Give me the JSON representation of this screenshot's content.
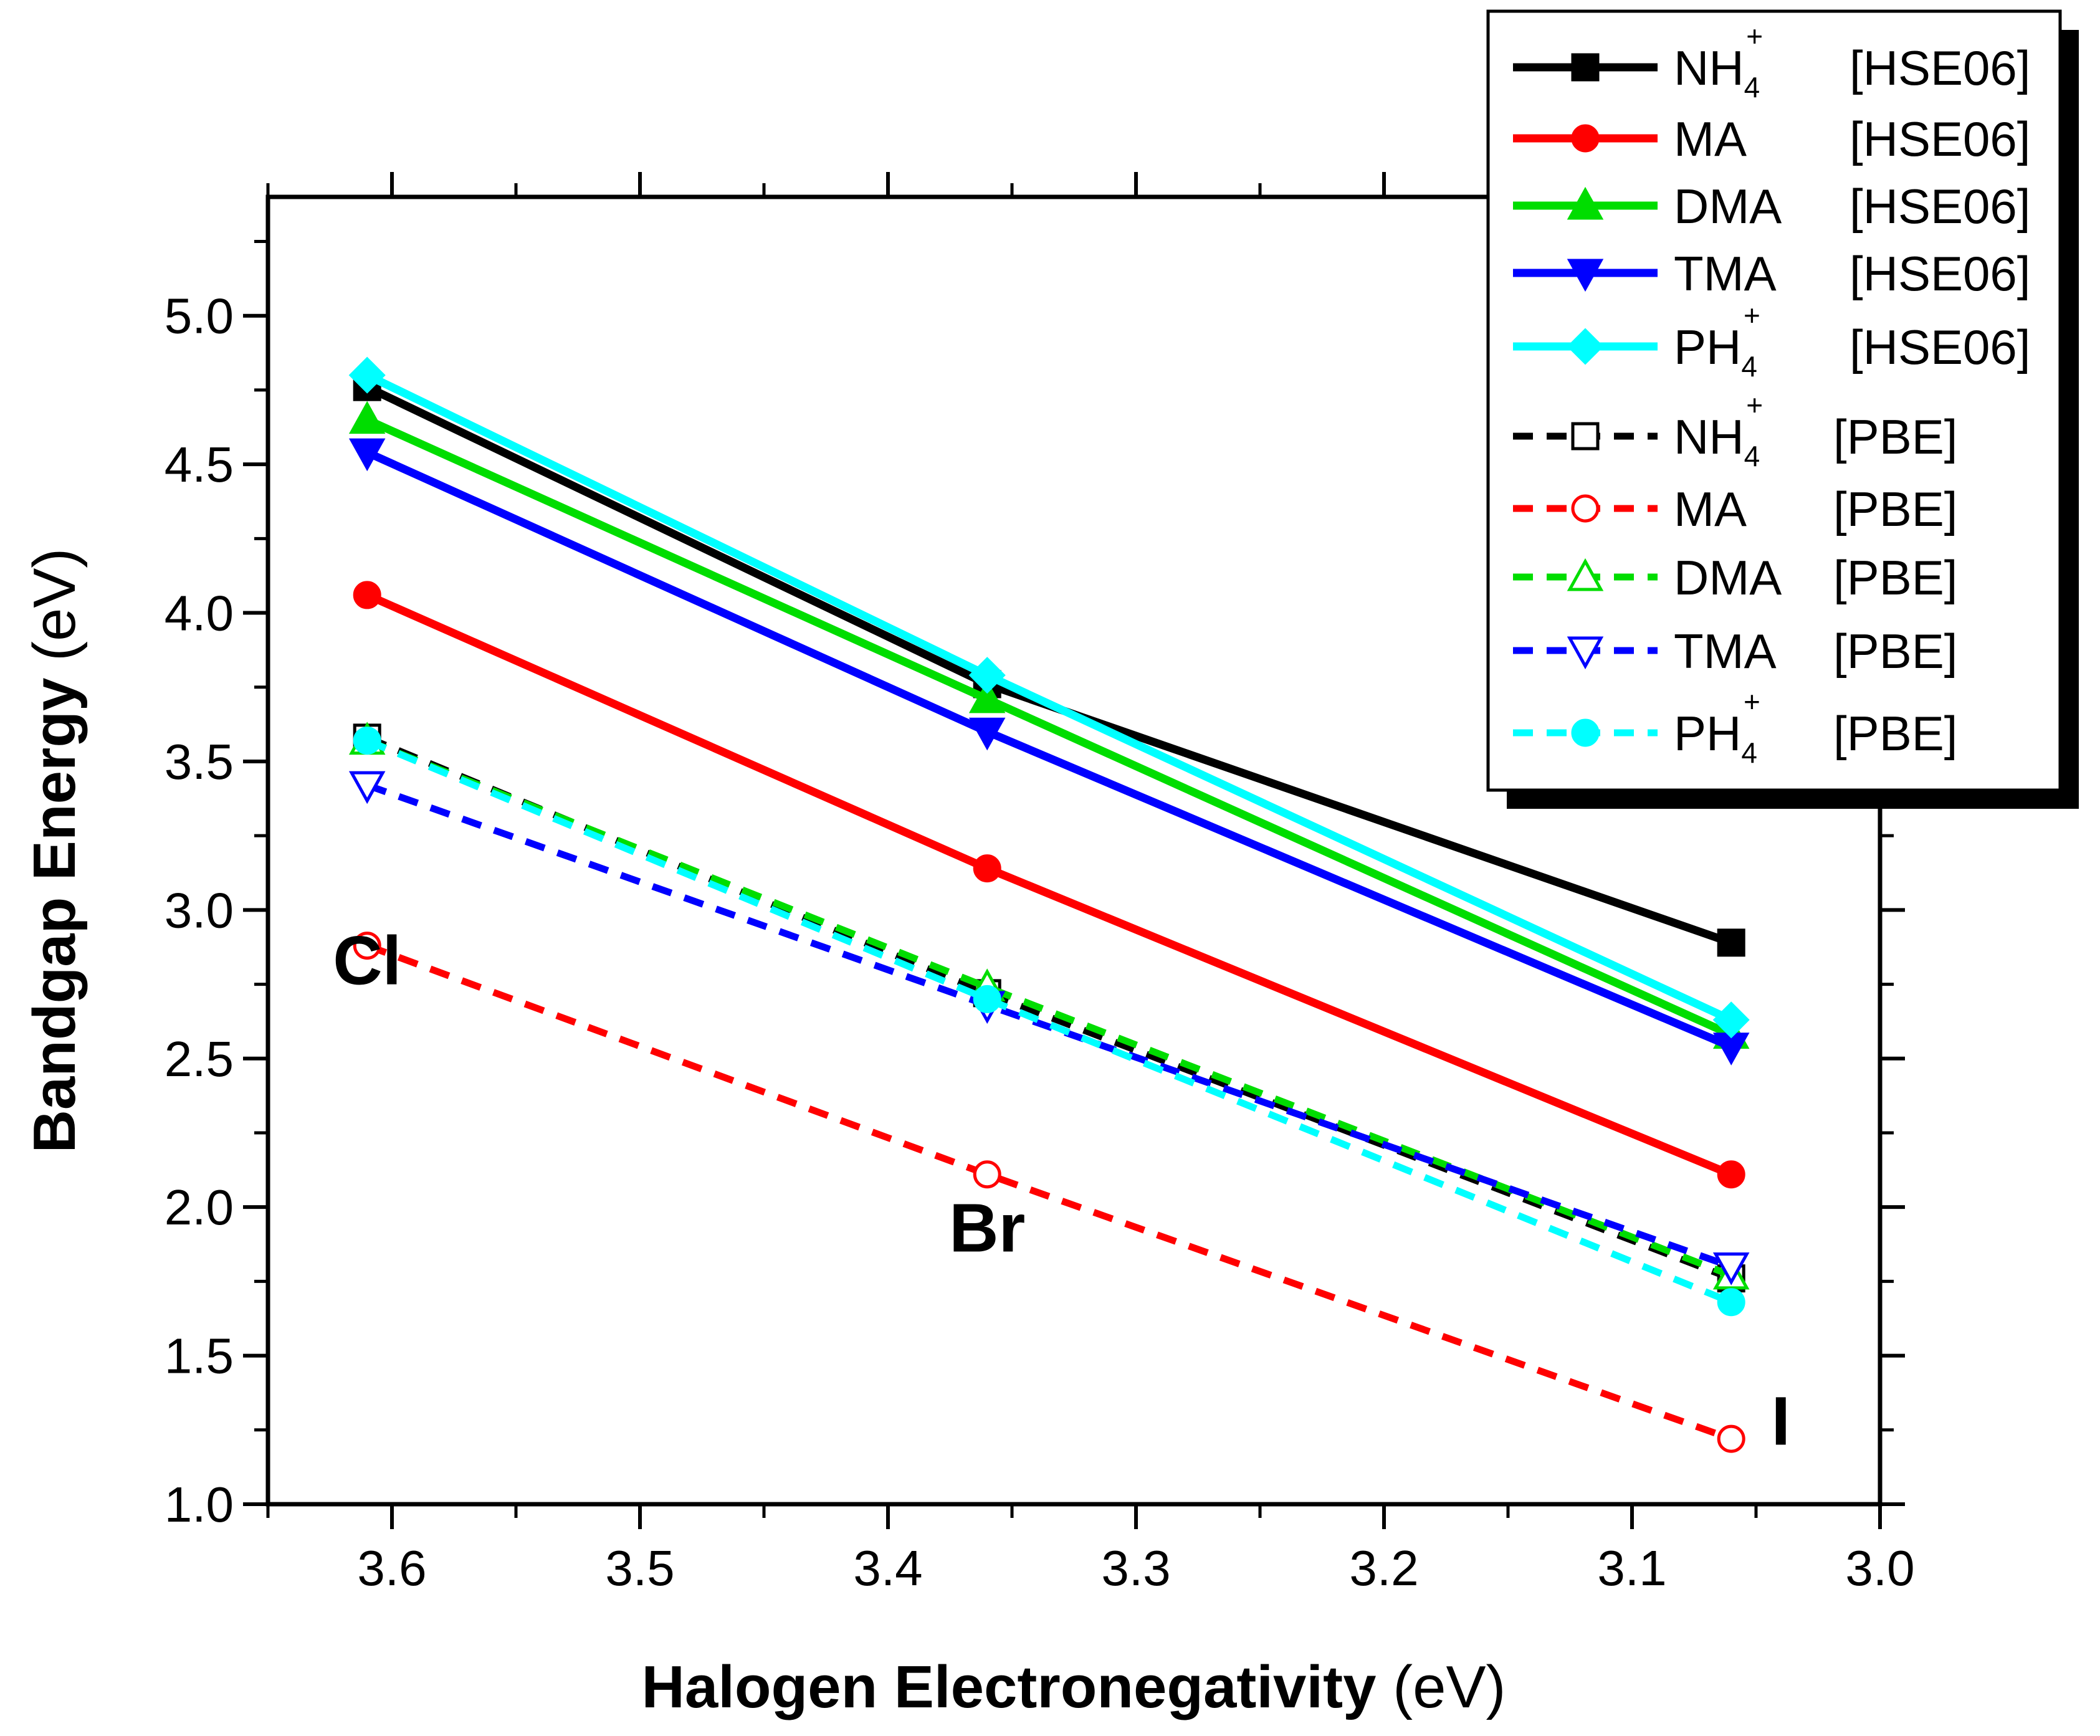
{
  "chart_data": {
    "type": "line",
    "xlabel_bold": "Halogen Electronegativity",
    "xlabel_unit": " (eV)",
    "ylabel_bold": "Bandgap Energy",
    "ylabel_unit": " (eV)",
    "xlim": [
      3.65,
      3.0
    ],
    "ylim": [
      1.0,
      5.4
    ],
    "x_ticks": [
      3.6,
      3.5,
      3.4,
      3.3,
      3.2,
      3.1,
      3.0
    ],
    "x_tick_labels": [
      "3.6",
      "3.5",
      "3.4",
      "3.3",
      "3.2",
      "3.1",
      "3.0"
    ],
    "y_ticks": [
      1.0,
      1.5,
      2.0,
      2.5,
      3.0,
      3.5,
      4.0,
      4.5,
      5.0
    ],
    "y_tick_labels": [
      "1.0",
      "1.5",
      "2.0",
      "2.5",
      "3.0",
      "3.5",
      "4.0",
      "4.5",
      "5.0"
    ],
    "x": [
      3.61,
      3.36,
      3.06
    ],
    "annotations": [
      {
        "text": "Cl",
        "x": 3.61,
        "y": 2.75
      },
      {
        "text": "Br",
        "x": 3.36,
        "y": 1.85
      },
      {
        "text": "I",
        "x": 3.04,
        "y": 1.2
      }
    ],
    "legend_position": "top-right",
    "series": [
      {
        "name": "NH4+",
        "label_main": "NH",
        "label_sub": "4",
        "label_sup": "+",
        "method": "[HSE06]",
        "values": [
          4.76,
          3.76,
          2.89
        ],
        "color": "#000000",
        "dash": "solid",
        "marker": "square",
        "filled": true
      },
      {
        "name": "MA",
        "label_main": "MA",
        "label_sub": "",
        "label_sup": "",
        "method": "[HSE06]",
        "values": [
          4.06,
          3.14,
          2.11
        ],
        "color": "#ff0000",
        "dash": "solid",
        "marker": "circle",
        "filled": true
      },
      {
        "name": "DMA",
        "label_main": "DMA",
        "label_sub": "",
        "label_sup": "",
        "method": "[HSE06]",
        "values": [
          4.65,
          3.71,
          2.58
        ],
        "color": "#00dd00",
        "dash": "solid",
        "marker": "triangle-up",
        "filled": true
      },
      {
        "name": "TMA",
        "label_main": "TMA",
        "label_sub": "",
        "label_sup": "",
        "method": "[HSE06]",
        "values": [
          4.54,
          3.6,
          2.54
        ],
        "color": "#0000ff",
        "dash": "solid",
        "marker": "triangle-down",
        "filled": true
      },
      {
        "name": "PH4+",
        "label_main": "PH",
        "label_sub": "4",
        "label_sup": "+",
        "method": "[HSE06]",
        "values": [
          4.8,
          3.79,
          2.63
        ],
        "color": "#00ffff",
        "dash": "solid",
        "marker": "diamond",
        "filled": true
      },
      {
        "name": "NH4+",
        "label_main": "NH",
        "label_sub": "4",
        "label_sup": "+",
        "method": "[PBE]",
        "values": [
          3.58,
          2.72,
          1.76
        ],
        "color": "#000000",
        "dash": "dashed",
        "marker": "square",
        "filled": false
      },
      {
        "name": "MA",
        "label_main": "MA",
        "label_sub": "",
        "label_sup": "",
        "method": "[PBE]",
        "values": [
          2.88,
          2.11,
          1.22
        ],
        "color": "#ff0000",
        "dash": "dashed",
        "marker": "circle",
        "filled": false
      },
      {
        "name": "DMA",
        "label_main": "DMA",
        "label_sub": "",
        "label_sup": "",
        "method": "[PBE]",
        "values": [
          3.57,
          2.74,
          1.77
        ],
        "color": "#00dd00",
        "dash": "dashed",
        "marker": "triangle-up",
        "filled": false
      },
      {
        "name": "TMA",
        "label_main": "TMA",
        "label_sub": "",
        "label_sup": "",
        "method": "[PBE]",
        "values": [
          3.42,
          2.68,
          1.8
        ],
        "color": "#0000ff",
        "dash": "dashed",
        "marker": "triangle-down",
        "filled": false
      },
      {
        "name": "PH4+",
        "label_main": "PH",
        "label_sub": "4",
        "label_sup": "+",
        "method": "[PBE]",
        "values": [
          3.57,
          2.7,
          1.68
        ],
        "color": "#00ffff",
        "dash": "dashed",
        "marker": "circle",
        "filled": true
      }
    ]
  }
}
